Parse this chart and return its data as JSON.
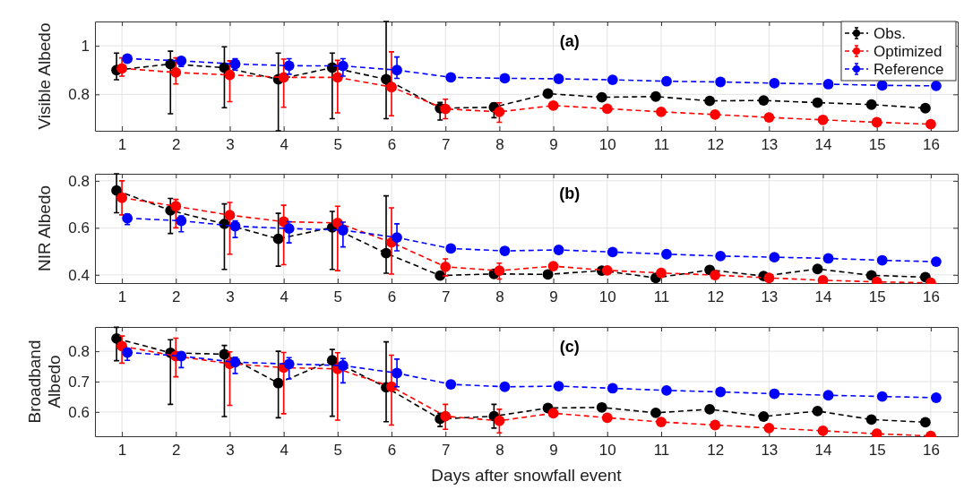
{
  "chart_data": [
    {
      "type": "line",
      "ylabel": "Visible Albedo",
      "annotations": [
        "(a)"
      ],
      "x": [
        1,
        2,
        3,
        4,
        5,
        6,
        7,
        8,
        9,
        10,
        11,
        12,
        13,
        14,
        15,
        16
      ],
      "xlim": [
        0.5,
        16.5
      ],
      "xticks": [
        1,
        2,
        3,
        4,
        5,
        6,
        7,
        8,
        9,
        10,
        11,
        12,
        13,
        14,
        15,
        16
      ],
      "ylim": [
        0.65,
        1.1
      ],
      "yticks": [
        0.8,
        1
      ],
      "grid": true,
      "legend": "top right",
      "marker": "circle",
      "line_style": "dashed",
      "series": [
        {
          "name": "Obs.",
          "color": "#000000",
          "x": [
            0.9,
            1.9,
            2.9,
            3.9,
            4.9,
            5.9,
            6.9,
            7.9,
            8.9,
            9.9,
            10.9,
            11.9,
            12.9,
            13.9,
            14.9,
            15.9
          ],
          "values": [
            0.9,
            0.925,
            0.91,
            0.862,
            0.91,
            0.862,
            0.743,
            0.747,
            0.803,
            0.788,
            0.791,
            0.773,
            0.775,
            0.766,
            0.758,
            0.743
          ],
          "errors": [
            [
              0.86,
              0.97
            ],
            [
              0.72,
              0.978
            ],
            [
              0.745,
              0.996
            ],
            [
              0.65,
              0.97
            ],
            [
              0.7,
              0.97
            ],
            [
              0.7,
              1.1
            ],
            [
              0.694,
              0.767
            ],
            [
              0.704,
              0.765
            ],
            null,
            null,
            null,
            null,
            null,
            null,
            null,
            null
          ]
        },
        {
          "name": "Optimized",
          "color": "#ff0000",
          "values": [
            0.907,
            0.89,
            0.88,
            0.87,
            0.87,
            0.83,
            0.74,
            0.728,
            0.754,
            0.741,
            0.728,
            0.717,
            0.705,
            0.695,
            0.685,
            0.677
          ],
          "errors": [
            [
              0.875,
              0.95
            ],
            [
              0.843,
              0.95
            ],
            [
              0.77,
              0.938
            ],
            [
              0.747,
              0.945
            ],
            [
              0.724,
              0.94
            ],
            [
              0.712,
              0.975
            ],
            [
              0.7,
              0.78
            ],
            [
              0.685,
              0.765
            ],
            null,
            null,
            null,
            null,
            null,
            null,
            null,
            null
          ]
        },
        {
          "name": "Reference",
          "color": "#0000ff",
          "x": [
            1.1,
            2.1,
            3.1,
            4.1,
            5.1,
            6.1,
            7.1,
            8.1,
            9.1,
            10.1,
            11.1,
            12.1,
            13.1,
            14.1,
            15.1,
            16.1
          ],
          "values": [
            0.947,
            0.938,
            0.925,
            0.918,
            0.917,
            0.9,
            0.87,
            0.866,
            0.864,
            0.86,
            0.854,
            0.851,
            0.846,
            0.842,
            0.837,
            0.835
          ],
          "errors": [
            null,
            [
              0.915,
              0.95
            ],
            [
              0.9,
              0.947
            ],
            [
              0.883,
              0.947
            ],
            [
              0.875,
              0.947
            ],
            [
              0.866,
              0.954
            ],
            null,
            null,
            null,
            null,
            null,
            null,
            null,
            null,
            null,
            null
          ]
        }
      ]
    },
    {
      "type": "line",
      "ylabel": "NIR Albedo",
      "annotations": [
        "(b)"
      ],
      "x": [
        1,
        2,
        3,
        4,
        5,
        6,
        7,
        8,
        9,
        10,
        11,
        12,
        13,
        14,
        15,
        16
      ],
      "xlim": [
        0.5,
        16.5
      ],
      "xticks": [
        1,
        2,
        3,
        4,
        5,
        6,
        7,
        8,
        9,
        10,
        11,
        12,
        13,
        14,
        15,
        16
      ],
      "ylim": [
        0.365,
        0.83
      ],
      "yticks": [
        0.4,
        0.6,
        0.8
      ],
      "grid": true,
      "marker": "circle",
      "line_style": "dashed",
      "series": [
        {
          "color": "#000000",
          "x": [
            0.9,
            1.9,
            2.9,
            3.9,
            4.9,
            5.9,
            6.9,
            7.9,
            8.9,
            9.9,
            10.9,
            11.9,
            12.9,
            13.9,
            14.9,
            15.9
          ],
          "values": [
            0.759,
            0.674,
            0.617,
            0.553,
            0.602,
            0.492,
            0.397,
            0.404,
            0.402,
            0.418,
            0.387,
            0.421,
            0.395,
            0.425,
            0.398,
            0.39
          ],
          "errors": [
            [
              0.664,
              0.83
            ],
            [
              0.576,
              0.725
            ],
            [
              0.423,
              0.702
            ],
            [
              0.437,
              0.662
            ],
            [
              0.423,
              0.67
            ],
            [
              0.407,
              0.736
            ],
            null,
            null,
            null,
            null,
            null,
            null,
            null,
            null,
            null,
            null
          ]
        },
        {
          "color": "#ff0000",
          "values": [
            0.728,
            0.692,
            0.654,
            0.626,
            0.621,
            0.538,
            0.434,
            0.418,
            0.437,
            0.419,
            0.408,
            0.399,
            0.387,
            0.377,
            0.37,
            0.366
          ],
          "errors": [
            [
              0.655,
              0.8
            ],
            [
              0.6,
              0.721
            ],
            [
              0.488,
              0.708
            ],
            [
              0.443,
              0.696
            ],
            [
              0.418,
              0.692
            ],
            [
              0.403,
              0.685
            ],
            [
              0.396,
              0.468
            ],
            [
              0.382,
              0.45
            ],
            null,
            null,
            null,
            null,
            null,
            null,
            null,
            null
          ]
        },
        {
          "color": "#0000ff",
          "x": [
            1.1,
            2.1,
            3.1,
            4.1,
            5.1,
            6.1,
            7.1,
            8.1,
            9.1,
            10.1,
            11.1,
            12.1,
            13.1,
            14.1,
            15.1,
            16.1
          ],
          "values": [
            0.641,
            0.63,
            0.607,
            0.597,
            0.59,
            0.559,
            0.512,
            0.502,
            0.506,
            0.497,
            0.488,
            0.48,
            0.475,
            0.47,
            0.462,
            0.456
          ],
          "errors": [
            [
              0.614,
              0.658
            ],
            [
              0.583,
              0.651
            ],
            [
              0.559,
              0.63
            ],
            [
              0.536,
              0.626
            ],
            [
              0.519,
              0.624
            ],
            [
              0.502,
              0.617
            ],
            null,
            null,
            null,
            null,
            null,
            null,
            null,
            null,
            null,
            null
          ]
        }
      ]
    },
    {
      "type": "line",
      "ylabel": "Broadband\nAlbedo",
      "xlabel": "Days after snowfall event",
      "annotations": [
        "(c)"
      ],
      "x": [
        1,
        2,
        3,
        4,
        5,
        6,
        7,
        8,
        9,
        10,
        11,
        12,
        13,
        14,
        15,
        16
      ],
      "xlim": [
        0.5,
        16.5
      ],
      "xticks": [
        1,
        2,
        3,
        4,
        5,
        6,
        7,
        8,
        9,
        10,
        11,
        12,
        13,
        14,
        15,
        16
      ],
      "ylim": [
        0.52,
        0.88
      ],
      "yticks": [
        0.6,
        0.7,
        0.8
      ],
      "grid": true,
      "marker": "circle",
      "line_style": "dashed",
      "series": [
        {
          "color": "#000000",
          "x": [
            0.9,
            1.9,
            2.9,
            3.9,
            4.9,
            5.9,
            6.9,
            7.9,
            8.9,
            9.9,
            10.9,
            11.9,
            12.9,
            13.9,
            14.9,
            15.9
          ],
          "values": [
            0.842,
            0.795,
            0.79,
            0.695,
            0.77,
            0.681,
            0.577,
            0.586,
            0.613,
            0.615,
            0.597,
            0.609,
            0.585,
            0.603,
            0.575,
            0.566
          ],
          "errors": [
            [
              0.769,
              0.879
            ],
            [
              0.625,
              0.838
            ],
            [
              0.585,
              0.819
            ],
            [
              0.581,
              0.8
            ],
            [
              0.586,
              0.806
            ],
            [
              0.568,
              0.831
            ],
            [
              0.552,
              0.596
            ],
            [
              0.547,
              0.625
            ],
            null,
            null,
            null,
            null,
            null,
            null,
            null,
            null
          ]
        },
        {
          "color": "#ff0000",
          "values": [
            0.817,
            0.784,
            0.759,
            0.746,
            0.742,
            0.683,
            0.586,
            0.571,
            0.596,
            0.581,
            0.567,
            0.557,
            0.547,
            0.538,
            0.528,
            0.521
          ],
          "errors": [
            [
              0.761,
              0.85
            ],
            [
              0.716,
              0.843
            ],
            [
              0.622,
              0.798
            ],
            [
              0.594,
              0.796
            ],
            [
              0.573,
              0.795
            ],
            [
              0.557,
              0.787
            ],
            [
              0.543,
              0.625
            ],
            [
              0.531,
              0.609
            ],
            null,
            null,
            null,
            null,
            null,
            null,
            null,
            null
          ]
        },
        {
          "color": "#0000ff",
          "x": [
            1.1,
            2.1,
            3.1,
            4.1,
            5.1,
            6.1,
            7.1,
            8.1,
            9.1,
            10.1,
            11.1,
            12.1,
            13.1,
            14.1,
            15.1,
            16.1
          ],
          "values": [
            0.796,
            0.784,
            0.764,
            0.758,
            0.753,
            0.728,
            0.691,
            0.683,
            0.685,
            0.678,
            0.671,
            0.666,
            0.66,
            0.655,
            0.651,
            0.647
          ],
          "errors": [
            [
              0.77,
              0.808
            ],
            [
              0.746,
              0.796
            ],
            [
              0.727,
              0.78
            ],
            [
              0.709,
              0.779
            ],
            [
              0.696,
              0.776
            ],
            [
              0.683,
              0.774
            ],
            null,
            null,
            null,
            null,
            null,
            null,
            null,
            null,
            null,
            null
          ]
        }
      ]
    }
  ]
}
